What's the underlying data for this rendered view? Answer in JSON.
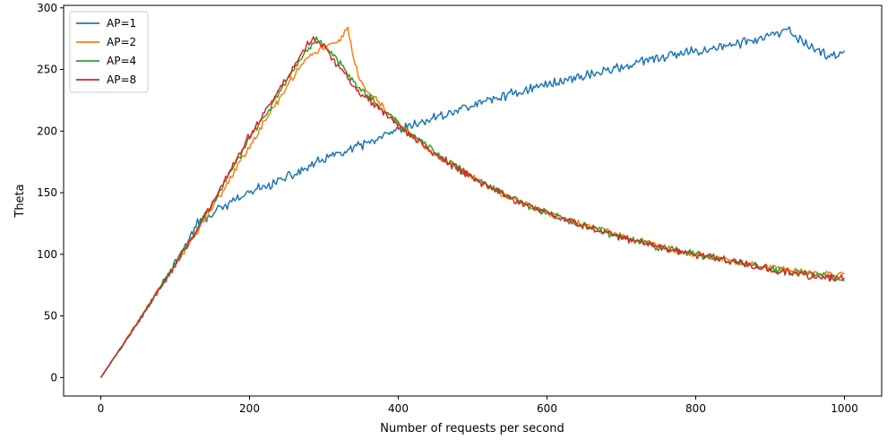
{
  "chart_data": {
    "type": "line",
    "title": "",
    "xlabel": "Number of requests per second",
    "ylabel": "Theta",
    "xlim": [
      -50,
      1050
    ],
    "ylim": [
      -15,
      302
    ],
    "xticks": [
      0,
      200,
      400,
      600,
      800,
      1000
    ],
    "yticks": [
      0,
      50,
      100,
      150,
      200,
      250,
      300
    ],
    "grid": false,
    "legend_position": "top-left",
    "series": [
      {
        "name": "AP=1",
        "color": "#1f77b4",
        "noise": 3.2,
        "x": [
          0,
          50,
          100,
          130,
          150,
          200,
          250,
          300,
          350,
          400,
          450,
          500,
          550,
          600,
          650,
          700,
          750,
          800,
          850,
          900,
          925,
          950,
          975,
          1000
        ],
        "y": [
          0,
          45,
          92,
          125,
          133,
          150,
          162,
          177,
          188,
          200,
          211,
          221,
          230,
          238,
          245,
          252,
          259,
          265,
          270,
          277,
          281,
          270,
          262,
          262
        ]
      },
      {
        "name": "AP=2",
        "color": "#ff7f0e",
        "noise": 2.2,
        "x": [
          0,
          50,
          100,
          150,
          200,
          250,
          270,
          290,
          310,
          325,
          332,
          340,
          350,
          375,
          400,
          450,
          500,
          550,
          600,
          650,
          700,
          750,
          800,
          850,
          900,
          950,
          1000
        ],
        "y": [
          0,
          45,
          92,
          138,
          188,
          236,
          255,
          265,
          270,
          276,
          282,
          258,
          238,
          222,
          206,
          180,
          163,
          146,
          134,
          124,
          115,
          107,
          100,
          95,
          89,
          85,
          84
        ]
      },
      {
        "name": "AP=4",
        "color": "#2ca02c",
        "noise": 2.4,
        "x": [
          0,
          50,
          100,
          150,
          200,
          250,
          275,
          290,
          300,
          320,
          350,
          375,
          400,
          450,
          500,
          550,
          600,
          650,
          700,
          750,
          800,
          850,
          900,
          950,
          1000
        ],
        "y": [
          0,
          45,
          92,
          140,
          194,
          240,
          262,
          275,
          270,
          256,
          234,
          220,
          206,
          182,
          162,
          146,
          133,
          123,
          114,
          106,
          100,
          94,
          88,
          84,
          80
        ]
      },
      {
        "name": "AP=8",
        "color": "#d62728",
        "noise": 2.4,
        "x": [
          0,
          50,
          100,
          150,
          200,
          250,
          275,
          285,
          300,
          320,
          350,
          375,
          400,
          450,
          500,
          550,
          600,
          650,
          700,
          750,
          800,
          850,
          900,
          950,
          1000
        ],
        "y": [
          0,
          45,
          92,
          141,
          196,
          243,
          268,
          276,
          268,
          252,
          230,
          218,
          204,
          181,
          162,
          146,
          133,
          123,
          114,
          106,
          100,
          94,
          88,
          83,
          80
        ]
      }
    ]
  }
}
